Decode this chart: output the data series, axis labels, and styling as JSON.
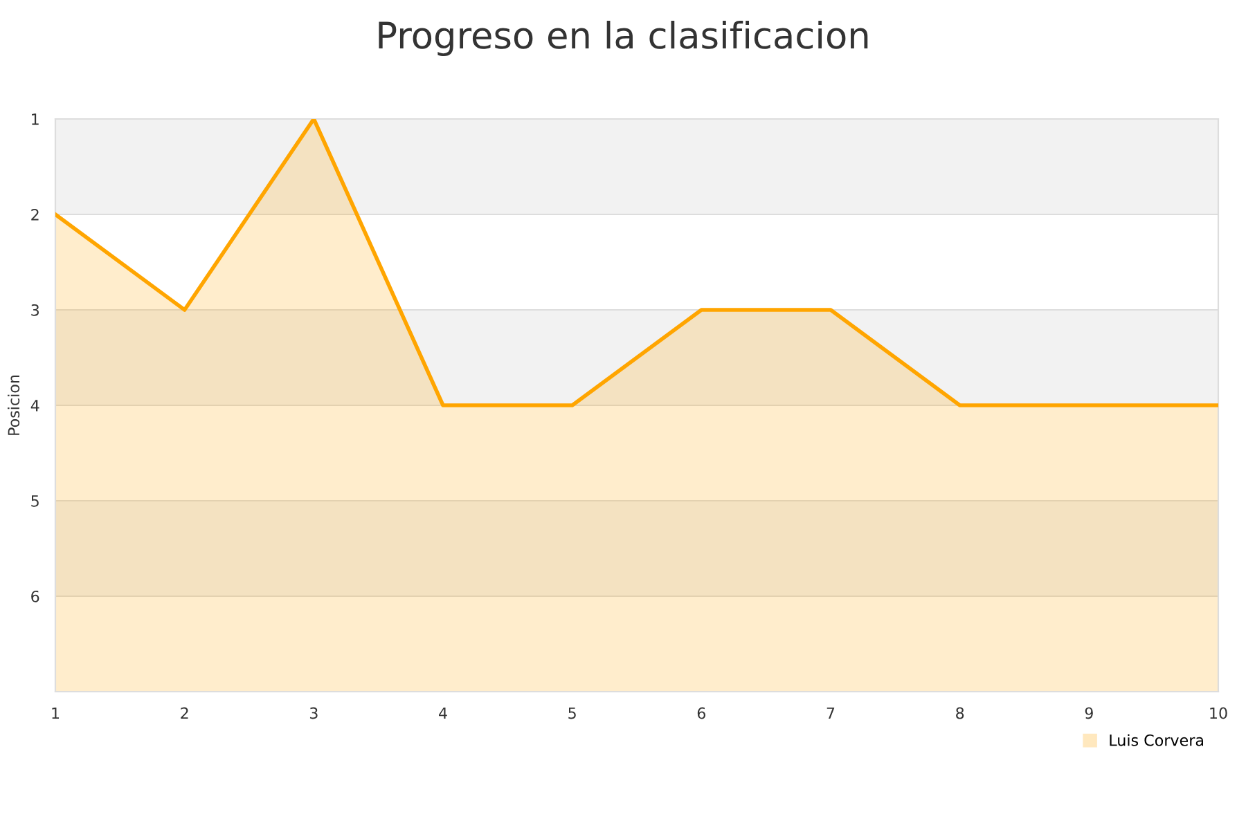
{
  "chart_data": {
    "type": "area",
    "title": "Progreso en la clasificacion",
    "ylabel": "Posicion",
    "x": [
      1,
      2,
      3,
      4,
      5,
      6,
      7,
      8,
      9,
      10
    ],
    "series": [
      {
        "name": "Luis Corvera",
        "color": "#ffa500",
        "values": [
          2,
          3,
          1,
          4,
          4,
          3,
          3,
          4,
          4,
          4
        ]
      }
    ],
    "xlim": [
      1,
      10
    ],
    "xticks": [
      1,
      2,
      3,
      4,
      5,
      6,
      7,
      8,
      9,
      10
    ],
    "ylim": [
      7,
      1
    ],
    "yticks": [
      1,
      2,
      3,
      4,
      5,
      6
    ],
    "bands": [
      {
        "axis": "y",
        "from": 1,
        "to": 2,
        "color": "#f2f2f2"
      },
      {
        "axis": "y",
        "from": 3,
        "to": 4,
        "color": "#f2f2f2"
      },
      {
        "axis": "y",
        "from": 5,
        "to": 6,
        "color": "#f2f2f2"
      }
    ],
    "grid": "y",
    "legend": "bottom right"
  }
}
